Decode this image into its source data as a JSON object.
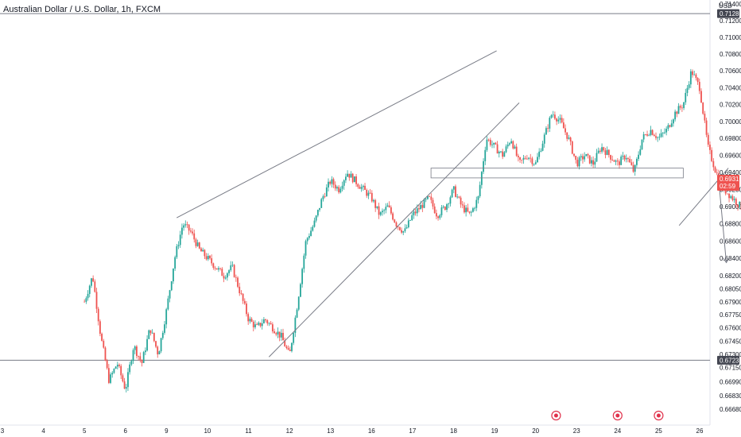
{
  "header": {
    "title": "Australian Dollar / U.S. Dollar, 1h, FXCM"
  },
  "colors": {
    "up": "#26a69a",
    "down": "#ef5350",
    "line": "#787b86",
    "tag_dark": "#434651",
    "tag_current": "#ef5350",
    "event_icon": "#e0314b"
  },
  "chart_data": {
    "type": "candlestick",
    "title": "Australian Dollar / U.S. Dollar, 1h, FXCM",
    "y_unit": "USD",
    "y_scale": "log",
    "ylim": [
      0.665,
      0.7145
    ],
    "y_ticks": [
      "0.71400",
      "0.71200",
      "0.71000",
      "0.70800",
      "0.70600",
      "0.70400",
      "0.70200",
      "0.70000",
      "0.69800",
      "0.69600",
      "0.69400",
      "0.69200",
      "0.69000",
      "0.68800",
      "0.68600",
      "0.68400",
      "0.68200",
      "0.68050",
      "0.67900",
      "0.67750",
      "0.67600",
      "0.67450",
      "0.67300",
      "0.67150",
      "0.66990",
      "0.66830",
      "0.66680"
    ],
    "x_ticks": [
      "3",
      "4",
      "5",
      "6",
      "9",
      "10",
      "11",
      "12",
      "13",
      "16",
      "17",
      "18",
      "19",
      "20",
      "23",
      "24",
      "25",
      "26"
    ],
    "price_tags": {
      "resistance": "0.71286",
      "current_price": "0.69316",
      "countdown": "02:59",
      "support": "0.67233"
    },
    "horizontal_lines": [
      0.71286,
      0.67233
    ],
    "price_path": [
      [
        2.0,
        0.679
      ],
      [
        2.2,
        0.682
      ],
      [
        2.4,
        0.675
      ],
      [
        2.6,
        0.67
      ],
      [
        2.8,
        0.672
      ],
      [
        3.0,
        0.669
      ],
      [
        3.2,
        0.674
      ],
      [
        3.4,
        0.672
      ],
      [
        3.6,
        0.676
      ],
      [
        3.8,
        0.673
      ],
      [
        4.0,
        0.678
      ],
      [
        4.2,
        0.684
      ],
      [
        4.4,
        0.688
      ],
      [
        4.6,
        0.687
      ],
      [
        4.8,
        0.685
      ],
      [
        5.0,
        0.684
      ],
      [
        5.2,
        0.683
      ],
      [
        5.4,
        0.682
      ],
      [
        5.6,
        0.683
      ],
      [
        5.8,
        0.68
      ],
      [
        6.0,
        0.677
      ],
      [
        6.2,
        0.676
      ],
      [
        6.4,
        0.677
      ],
      [
        6.6,
        0.676
      ],
      [
        6.8,
        0.675
      ],
      [
        7.0,
        0.6728
      ],
      [
        7.2,
        0.679
      ],
      [
        7.4,
        0.686
      ],
      [
        7.6,
        0.688
      ],
      [
        7.8,
        0.691
      ],
      [
        8.0,
        0.693
      ],
      [
        8.2,
        0.692
      ],
      [
        8.4,
        0.694
      ],
      [
        8.6,
        0.693
      ],
      [
        8.8,
        0.692
      ],
      [
        9.0,
        0.691
      ],
      [
        9.2,
        0.689
      ],
      [
        9.4,
        0.69
      ],
      [
        9.6,
        0.688
      ],
      [
        9.8,
        0.687
      ],
      [
        10.0,
        0.689
      ],
      [
        10.2,
        0.69
      ],
      [
        10.4,
        0.691
      ],
      [
        10.6,
        0.689
      ],
      [
        10.8,
        0.69
      ],
      [
        11.0,
        0.692
      ],
      [
        11.2,
        0.69
      ],
      [
        11.4,
        0.689
      ],
      [
        11.6,
        0.691
      ],
      [
        11.8,
        0.698
      ],
      [
        12.0,
        0.697
      ],
      [
        12.2,
        0.696
      ],
      [
        12.4,
        0.698
      ],
      [
        12.6,
        0.695
      ],
      [
        12.8,
        0.696
      ],
      [
        13.0,
        0.695
      ],
      [
        13.2,
        0.698
      ],
      [
        13.4,
        0.701
      ],
      [
        13.6,
        0.7
      ],
      [
        13.8,
        0.698
      ],
      [
        14.0,
        0.695
      ],
      [
        14.2,
        0.696
      ],
      [
        14.4,
        0.695
      ],
      [
        14.6,
        0.697
      ],
      [
        14.8,
        0.696
      ],
      [
        15.0,
        0.695
      ],
      [
        15.2,
        0.696
      ],
      [
        15.4,
        0.694
      ],
      [
        15.6,
        0.698
      ],
      [
        15.8,
        0.699
      ],
      [
        16.0,
        0.698
      ],
      [
        16.2,
        0.699
      ],
      [
        16.4,
        0.701
      ],
      [
        16.6,
        0.702
      ],
      [
        16.8,
        0.706
      ],
      [
        17.0,
        0.704
      ],
      [
        17.2,
        0.697
      ],
      [
        17.4,
        0.694
      ],
      [
        17.6,
        0.692
      ],
      [
        17.8,
        0.691
      ],
      [
        18.0,
        0.69
      ],
      [
        18.2,
        0.689
      ],
      [
        18.4,
        0.688
      ],
      [
        18.6,
        0.69
      ],
      [
        18.8,
        0.691
      ],
      [
        19.0,
        0.692
      ],
      [
        19.2,
        0.6925
      ],
      [
        19.4,
        0.693
      ],
      [
        19.6,
        0.6935
      ],
      [
        19.8,
        0.6932
      ]
    ],
    "annotations": {
      "upper_channel": [
        [
          4.25,
          0.6887
        ],
        [
          12.05,
          0.7084
        ]
      ],
      "lower_channel": [
        [
          6.5,
          0.6727
        ],
        [
          12.6,
          0.7022
        ]
      ],
      "support_zone": [
        [
          10.45,
          0.69335
        ],
        [
          16.6,
          0.6945
        ]
      ],
      "rising_wedge": [
        [
          16.5,
          0.6878
        ],
        [
          17.7,
          0.6945
        ]
      ],
      "projection_arrow": [
        [
          17.45,
          0.6938
        ],
        [
          17.65,
          0.6835
        ]
      ]
    },
    "events_x": [
      13.5,
      15.0,
      16.0
    ]
  }
}
